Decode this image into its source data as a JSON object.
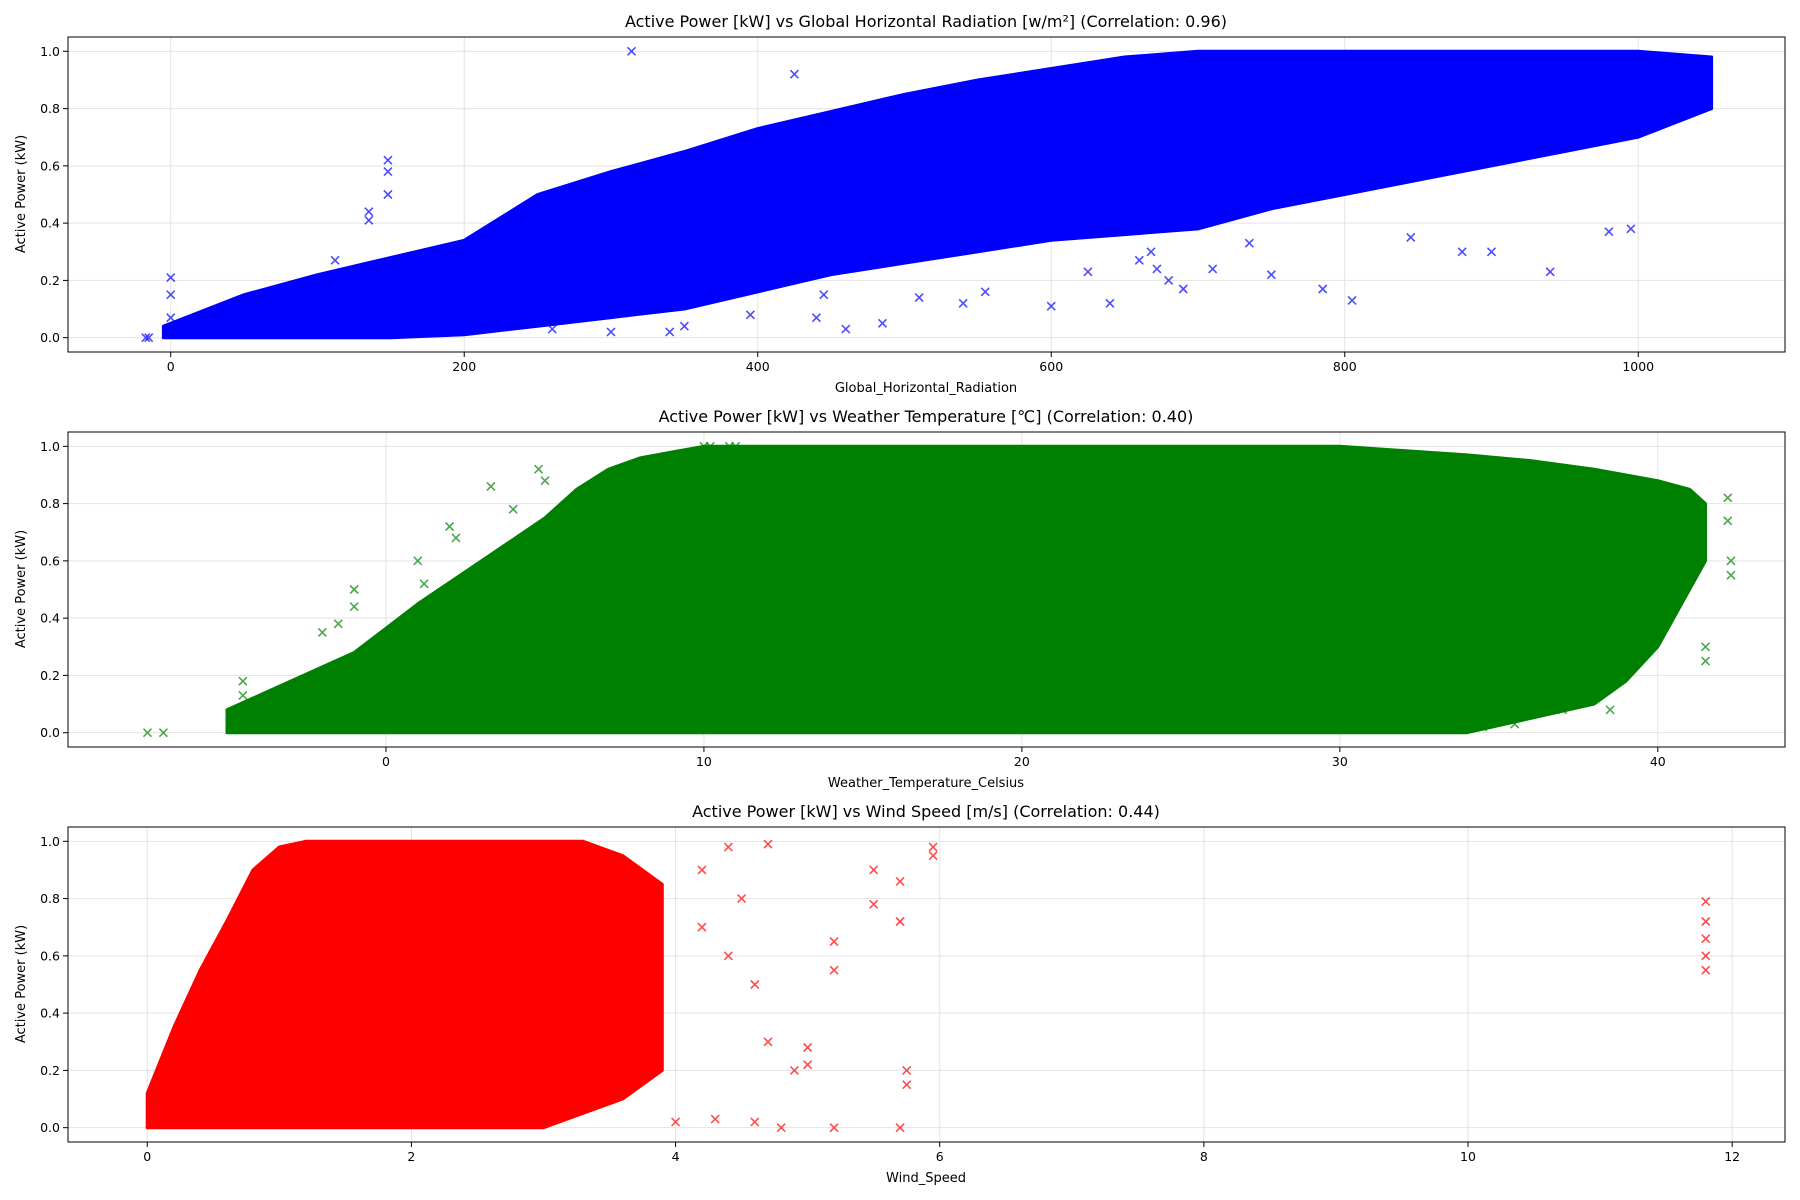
{
  "chart_data": [
    {
      "type": "scatter",
      "title": "Active Power [kW] vs Global Horizontal Radiation [w/m²] (Correlation: 0.96)",
      "xlabel": "Global_Horizontal_Radiation",
      "ylabel": "Active Power (kW)",
      "xlim": [
        -70,
        1100
      ],
      "ylim": [
        -0.05,
        1.05
      ],
      "xticks": [
        0,
        200,
        400,
        600,
        800,
        1000
      ],
      "yticks": [
        0.0,
        0.2,
        0.4,
        0.6,
        0.8,
        1.0
      ],
      "marker": "x",
      "color": "#0000ff",
      "grid": true,
      "band": {
        "x": [
          -5,
          50,
          100,
          150,
          200,
          250,
          300,
          350,
          400,
          450,
          500,
          550,
          600,
          650,
          700,
          750,
          800,
          850,
          900,
          950,
          1000,
          1050
        ],
        "lower": [
          0.0,
          0.0,
          0.0,
          0.0,
          0.01,
          0.04,
          0.07,
          0.1,
          0.16,
          0.22,
          0.26,
          0.3,
          0.34,
          0.36,
          0.38,
          0.45,
          0.5,
          0.55,
          0.6,
          0.65,
          0.7,
          0.8
        ],
        "upper": [
          0.04,
          0.15,
          0.22,
          0.28,
          0.34,
          0.5,
          0.58,
          0.65,
          0.73,
          0.79,
          0.85,
          0.9,
          0.94,
          0.98,
          1.0,
          1.0,
          1.0,
          1.0,
          1.0,
          1.0,
          1.0,
          0.98
        ]
      },
      "points": [
        [
          -17,
          0.0
        ],
        [
          -15,
          0.0
        ],
        [
          0,
          0.21
        ],
        [
          0,
          0.15
        ],
        [
          0,
          0.07
        ],
        [
          148,
          0.62
        ],
        [
          148,
          0.58
        ],
        [
          148,
          0.5
        ],
        [
          135,
          0.44
        ],
        [
          135,
          0.41
        ],
        [
          112,
          0.27
        ],
        [
          314,
          1.0
        ],
        [
          425,
          0.92
        ],
        [
          260,
          0.03
        ],
        [
          300,
          0.02
        ],
        [
          340,
          0.02
        ],
        [
          350,
          0.04
        ],
        [
          395,
          0.08
        ],
        [
          440,
          0.07
        ],
        [
          445,
          0.15
        ],
        [
          460,
          0.03
        ],
        [
          485,
          0.05
        ],
        [
          510,
          0.14
        ],
        [
          540,
          0.12
        ],
        [
          555,
          0.16
        ],
        [
          600,
          0.11
        ],
        [
          625,
          0.23
        ],
        [
          640,
          0.12
        ],
        [
          660,
          0.27
        ],
        [
          668,
          0.3
        ],
        [
          672,
          0.24
        ],
        [
          680,
          0.2
        ],
        [
          690,
          0.17
        ],
        [
          710,
          0.24
        ],
        [
          735,
          0.33
        ],
        [
          750,
          0.22
        ],
        [
          785,
          0.17
        ],
        [
          805,
          0.13
        ],
        [
          845,
          0.35
        ],
        [
          880,
          0.3
        ],
        [
          900,
          0.3
        ],
        [
          940,
          0.23
        ],
        [
          980,
          0.37
        ],
        [
          995,
          0.38
        ]
      ]
    },
    {
      "type": "scatter",
      "title": "Active Power [kW] vs Weather Temperature [℃] (Correlation: 0.40)",
      "xlabel": "Weather_Temperature_Celsius",
      "ylabel": "Active Power (kW)",
      "xlim": [
        -10,
        44
      ],
      "ylim": [
        -0.05,
        1.05
      ],
      "xticks": [
        0,
        10,
        20,
        30,
        40
      ],
      "yticks": [
        0.0,
        0.2,
        0.4,
        0.6,
        0.8,
        1.0
      ],
      "marker": "x",
      "color": "#008000",
      "grid": true,
      "band": {
        "x": [
          -5,
          -3,
          -1,
          1,
          3,
          5,
          6,
          7,
          8,
          9,
          10,
          30,
          34,
          36,
          38,
          39,
          40,
          41,
          41.5
        ],
        "lower": [
          0.0,
          0.0,
          0.0,
          0.0,
          0.0,
          0.0,
          0.0,
          0.0,
          0.0,
          0.0,
          0.0,
          0.0,
          0.0,
          0.05,
          0.1,
          0.18,
          0.3,
          0.5,
          0.6
        ],
        "upper": [
          0.08,
          0.18,
          0.28,
          0.45,
          0.6,
          0.75,
          0.85,
          0.92,
          0.96,
          0.98,
          1.0,
          1.0,
          0.97,
          0.95,
          0.92,
          0.9,
          0.88,
          0.85,
          0.8
        ]
      },
      "points": [
        [
          -7.5,
          0.0
        ],
        [
          -7,
          0.0
        ],
        [
          -4.5,
          0.18
        ],
        [
          -4.5,
          0.13
        ],
        [
          -2,
          0.35
        ],
        [
          -1.5,
          0.38
        ],
        [
          -1,
          0.5
        ],
        [
          -1,
          0.44
        ],
        [
          1,
          0.6
        ],
        [
          1.2,
          0.52
        ],
        [
          2,
          0.72
        ],
        [
          2.2,
          0.68
        ],
        [
          3.3,
          0.86
        ],
        [
          4,
          0.78
        ],
        [
          4.8,
          0.92
        ],
        [
          5,
          0.88
        ],
        [
          10,
          1.0
        ],
        [
          10.2,
          1.0
        ],
        [
          10.8,
          1.0
        ],
        [
          11,
          1.0
        ],
        [
          42.2,
          0.82
        ],
        [
          42.2,
          0.74
        ],
        [
          42.3,
          0.6
        ],
        [
          42.3,
          0.55
        ],
        [
          41.5,
          0.3
        ],
        [
          41.5,
          0.25
        ],
        [
          40.5,
          0.45
        ],
        [
          34.5,
          0.02
        ],
        [
          35.5,
          0.03
        ],
        [
          37,
          0.08
        ],
        [
          38.5,
          0.08
        ]
      ]
    },
    {
      "type": "scatter",
      "title": "Active Power [kW] vs Wind Speed [m/s] (Correlation: 0.44)",
      "xlabel": "Wind_Speed",
      "ylabel": "Active Power (kW)",
      "xlim": [
        -0.6,
        12.4
      ],
      "ylim": [
        -0.05,
        1.05
      ],
      "xticks": [
        0,
        2,
        4,
        6,
        8,
        10,
        12
      ],
      "yticks": [
        0.0,
        0.2,
        0.4,
        0.6,
        0.8,
        1.0
      ],
      "marker": "x",
      "color": "#ff0000",
      "grid": true,
      "band": {
        "x": [
          0,
          0.2,
          0.4,
          0.6,
          0.8,
          1.0,
          1.2,
          2.5,
          3.0,
          3.3,
          3.6,
          3.9
        ],
        "lower": [
          0.0,
          0.0,
          0.0,
          0.0,
          0.0,
          0.0,
          0.0,
          0.0,
          0.0,
          0.05,
          0.1,
          0.2
        ],
        "upper": [
          0.12,
          0.35,
          0.55,
          0.72,
          0.9,
          0.98,
          1.0,
          1.0,
          1.0,
          1.0,
          0.95,
          0.85
        ]
      },
      "points": [
        [
          4.2,
          0.9
        ],
        [
          4.2,
          0.7
        ],
        [
          4.4,
          0.98
        ],
        [
          4.4,
          0.6
        ],
        [
          4.5,
          0.8
        ],
        [
          4.6,
          0.5
        ],
        [
          4.7,
          0.99
        ],
        [
          4.7,
          0.3
        ],
        [
          4.9,
          0.2
        ],
        [
          5.0,
          0.28
        ],
        [
          5.0,
          0.22
        ],
        [
          5.2,
          0.65
        ],
        [
          5.2,
          0.55
        ],
        [
          5.5,
          0.9
        ],
        [
          5.5,
          0.78
        ],
        [
          5.7,
          0.86
        ],
        [
          5.7,
          0.72
        ],
        [
          5.75,
          0.2
        ],
        [
          5.75,
          0.15
        ],
        [
          5.95,
          0.98
        ],
        [
          5.95,
          0.95
        ],
        [
          11.8,
          0.79
        ],
        [
          11.8,
          0.72
        ],
        [
          11.8,
          0.66
        ],
        [
          11.8,
          0.6
        ],
        [
          11.8,
          0.55
        ],
        [
          4.0,
          0.02
        ],
        [
          4.3,
          0.03
        ],
        [
          4.6,
          0.02
        ],
        [
          4.8,
          0.0
        ],
        [
          5.2,
          0.0
        ],
        [
          5.7,
          0.0
        ]
      ]
    }
  ]
}
